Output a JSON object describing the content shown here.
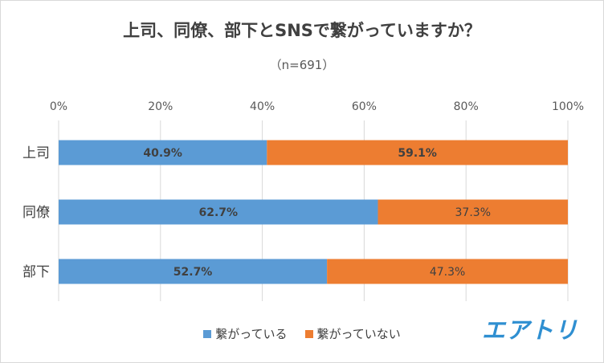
{
  "chart_data": {
    "type": "bar",
    "orientation": "horizontal",
    "stacked": true,
    "title": "上司、同僚、部下とSNSで繋がっていますか？",
    "subtitle": "（n=691）",
    "categories": [
      "上司",
      "同僚",
      "部下"
    ],
    "series": [
      {
        "name": "繋がっている",
        "values": [
          40.9,
          62.7,
          52.7
        ],
        "labels": [
          "40.9%",
          "62.7%",
          "52.7%"
        ],
        "color": "#5b9bd5"
      },
      {
        "name": "繋がっていない",
        "values": [
          59.1,
          37.3,
          47.3
        ],
        "labels": [
          "59.1%",
          "37.3%",
          "47.3%"
        ],
        "color": "#ed7d31"
      }
    ],
    "xlim": [
      0,
      100
    ],
    "x_ticks": [
      "0%",
      "20%",
      "40%",
      "60%",
      "80%",
      "100%"
    ],
    "grid": true,
    "legend_position": "bottom"
  },
  "logo_text": "エアトリ",
  "colors": {
    "label_text": "#404040"
  }
}
